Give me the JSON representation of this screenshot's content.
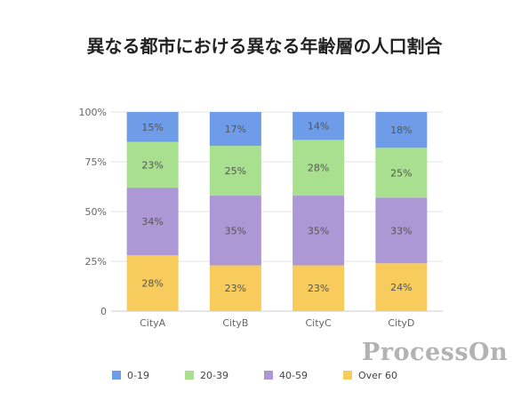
{
  "chart_data": {
    "type": "bar",
    "stacked": true,
    "title": "異なる都市における異なる年齢層の人口割合",
    "categories": [
      "CityA",
      "CityB",
      "CityC",
      "CityD"
    ],
    "series": [
      {
        "name": "0-19",
        "color": "#6f9ce8",
        "values": [
          15,
          17,
          14,
          18
        ]
      },
      {
        "name": "20-39",
        "color": "#a8e08f",
        "values": [
          23,
          25,
          28,
          25
        ]
      },
      {
        "name": "40-59",
        "color": "#ad98d6",
        "values": [
          34,
          35,
          35,
          33
        ]
      },
      {
        "name": "Over 60",
        "color": "#f7cc5c",
        "values": [
          28,
          23,
          23,
          24
        ]
      }
    ],
    "y_ticks": [
      "0",
      "25%",
      "50%",
      "75%",
      "100%"
    ],
    "ylim": [
      0,
      100
    ],
    "legend_position": "bottom",
    "grid": true
  },
  "watermark": "ProcessOn"
}
